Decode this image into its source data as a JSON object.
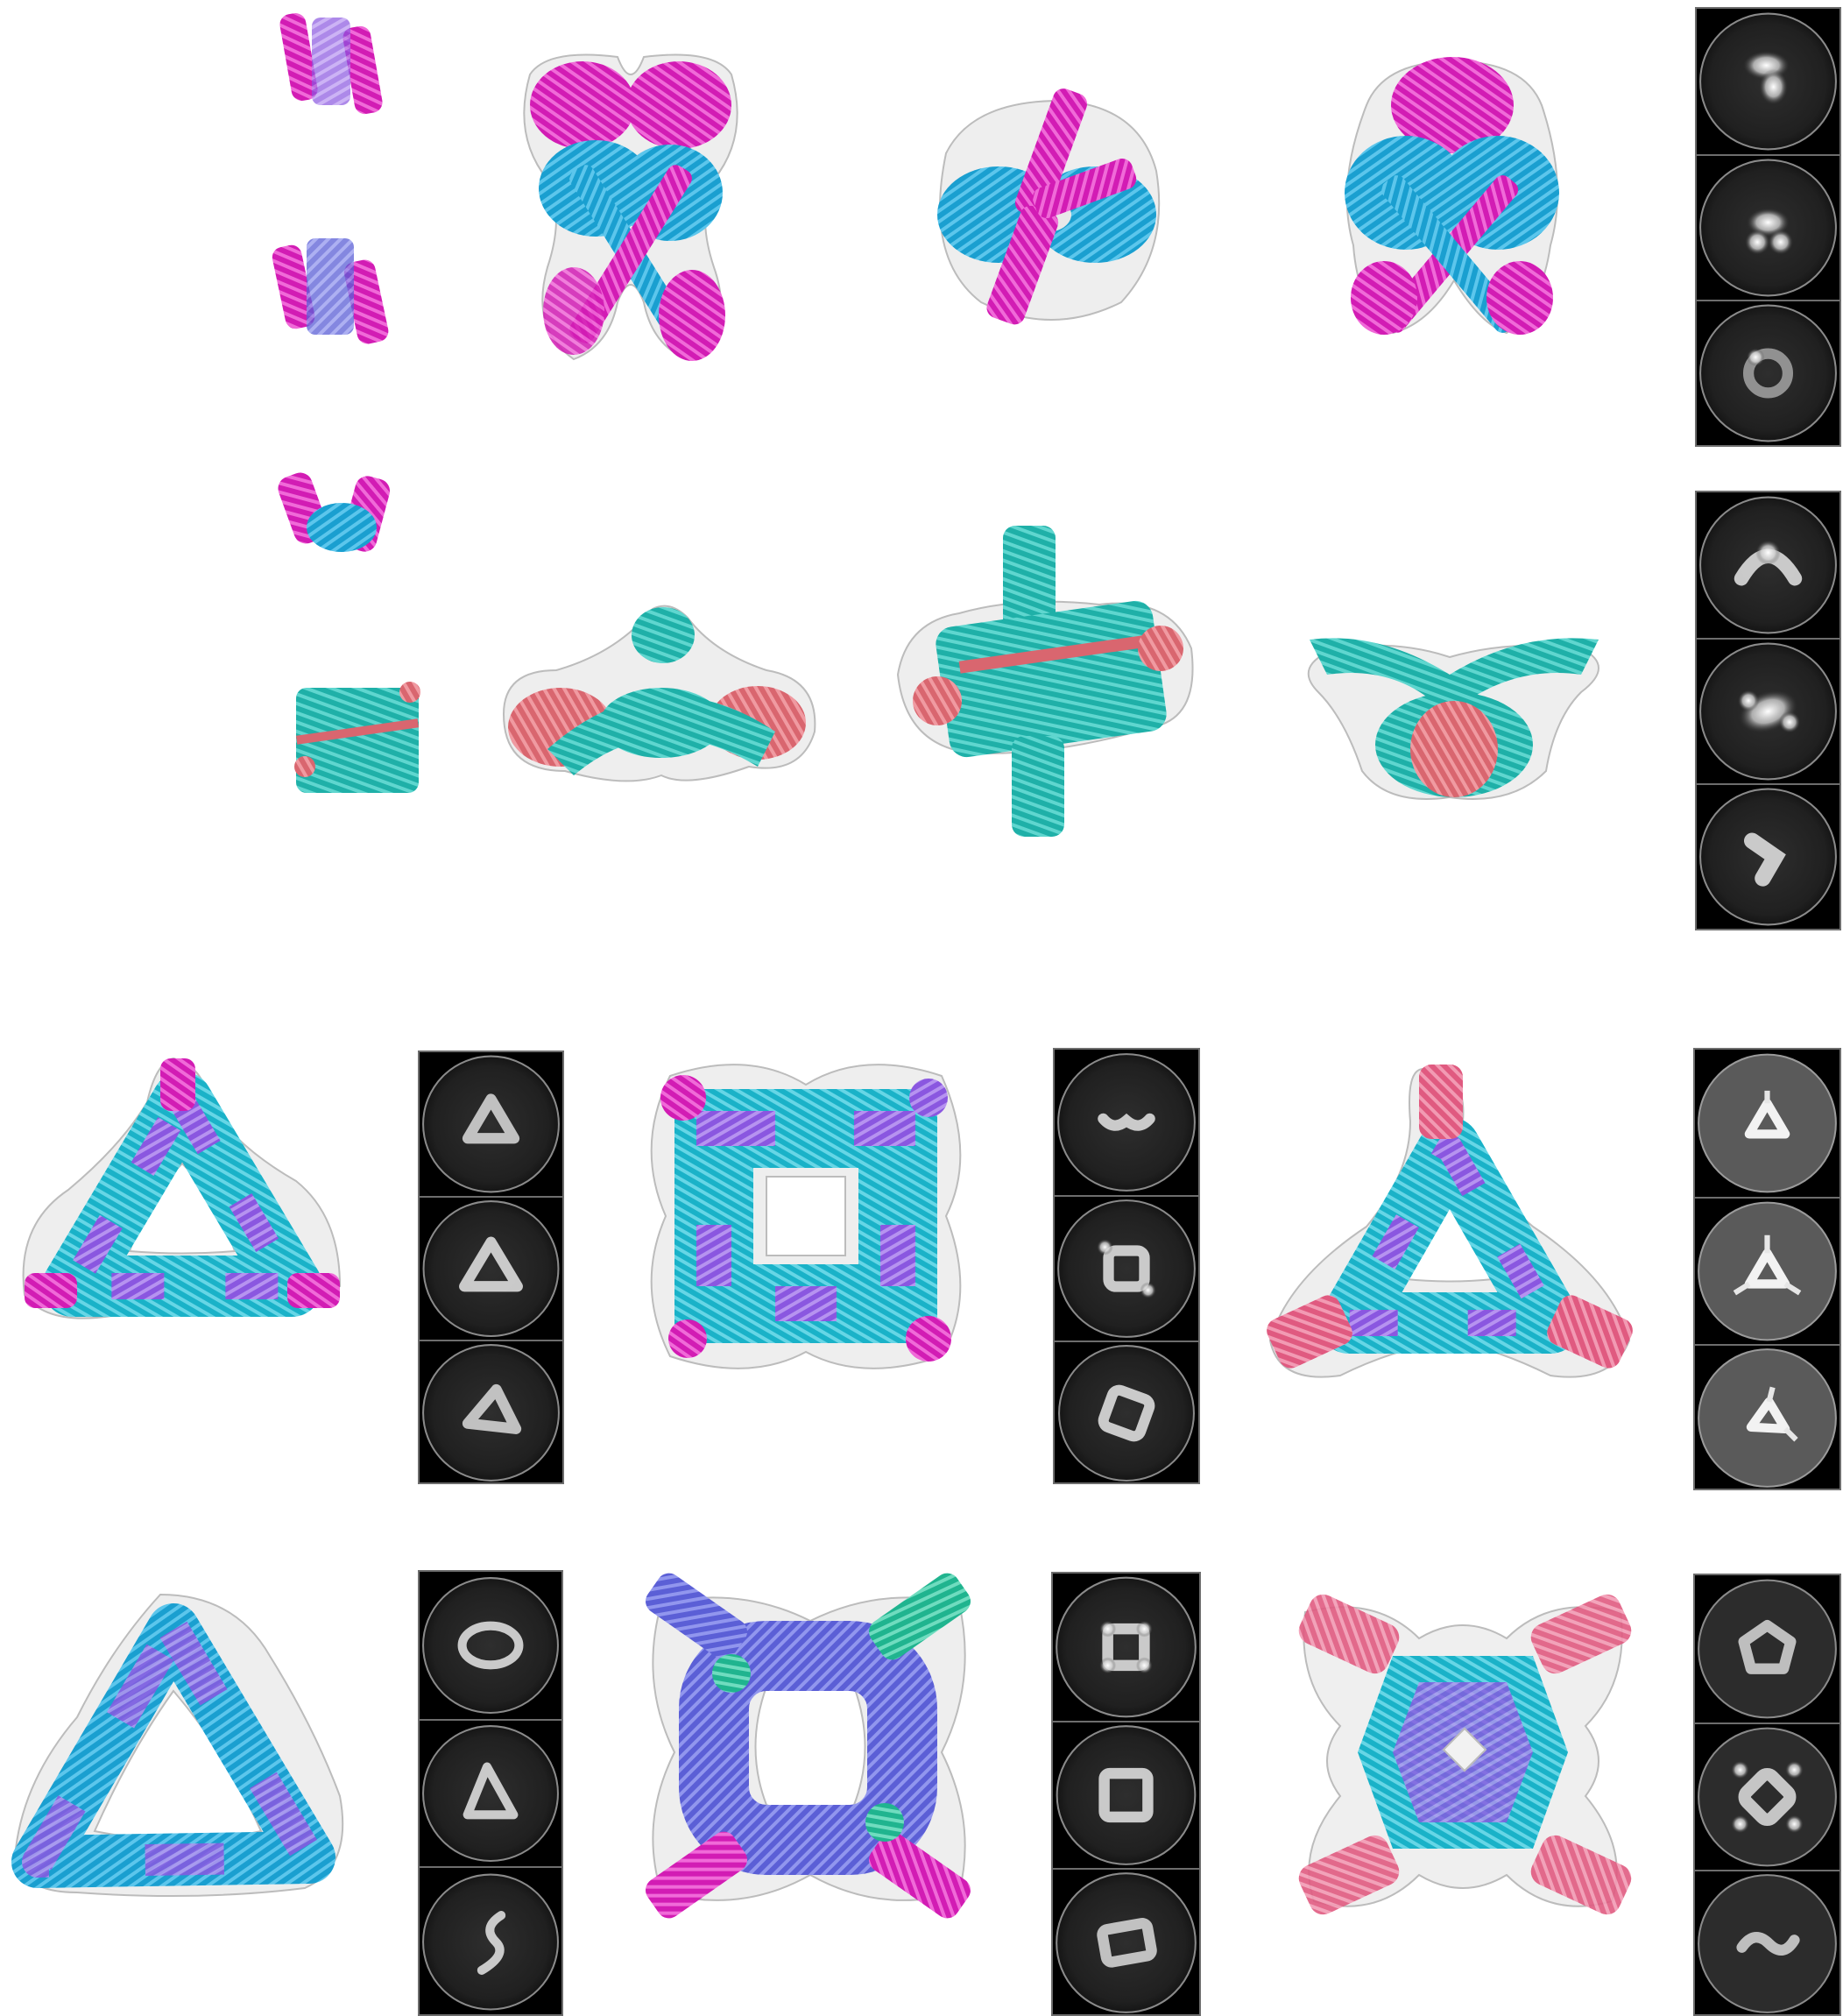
{
  "figure": {
    "background": "#ffffff",
    "colors": {
      "magenta": "#d21cb4",
      "sky_blue": "#1a9fd0",
      "teal": "#1fb0a8",
      "salmon": "#d9666f",
      "cyan": "#1ab2c8",
      "violet": "#8a57e0",
      "rose": "#e05a80",
      "indigo": "#5b5fd6",
      "sea_green": "#20b48f",
      "envelope_gray": "#d0d0d0",
      "em_panel": "#000000",
      "em_frame": "#6d6d6d"
    },
    "panels": [
      {
        "name": "row1-x-dimer",
        "icon": "x-shaped-helical-bundle",
        "has_thumbnails": true,
        "class_averages": 3
      },
      {
        "name": "row2-bent-heterodimer",
        "icon": "bent-helical-heterodimer",
        "has_thumbnails": true,
        "class_averages": 3
      },
      {
        "name": "row3-triangle-a",
        "icon": "triangular-ring-assembly",
        "class_averages": 3
      },
      {
        "name": "row3-square-a",
        "icon": "square-ring-assembly",
        "class_averages": 3
      },
      {
        "name": "row3-triangle-b",
        "icon": "three-arm-triangle-assembly",
        "class_averages": 3
      },
      {
        "name": "row4-triangle-c",
        "icon": "large-triangle-ring",
        "class_averages": 3
      },
      {
        "name": "row4-square-b",
        "icon": "square-ring-with-arms",
        "class_averages": 3
      },
      {
        "name": "row4-pinwheel",
        "icon": "pinwheel-assembly",
        "class_averages": 3
      }
    ]
  }
}
